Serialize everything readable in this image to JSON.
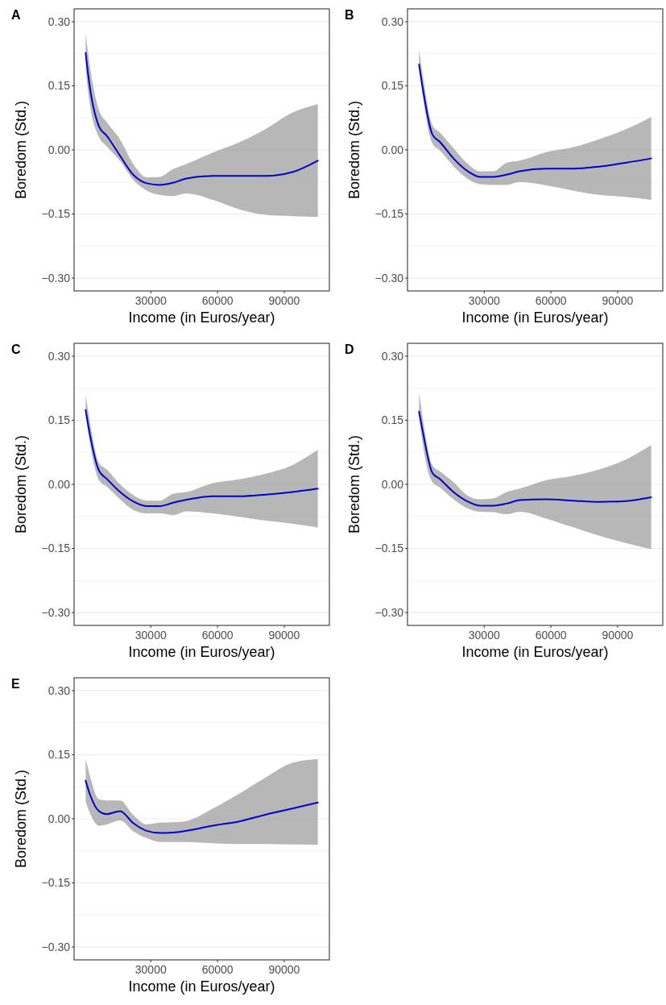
{
  "chart_data": [
    {
      "type": "line",
      "title": "A",
      "xlabel": "Income (in Euros/year)",
      "ylabel": "Boredom (Std.)",
      "xlim": [
        -4500,
        110300
      ],
      "ylim": [
        -0.33,
        0.33
      ],
      "xticks": [
        30000,
        60000,
        90000
      ],
      "yticks": [
        {
          "value": -0.3,
          "label": "−0.30"
        },
        {
          "value": -0.225,
          "label": null
        },
        {
          "value": -0.15,
          "label": "−0.15"
        },
        {
          "value": -0.075,
          "label": null
        },
        {
          "value": 0,
          "label": "0.00"
        },
        {
          "value": 0.075,
          "label": null
        },
        {
          "value": 0.15,
          "label": "0.15"
        },
        {
          "value": 0.225,
          "label": null
        },
        {
          "value": 0.3,
          "label": "0.30"
        }
      ],
      "grid": "y",
      "x": [
        700,
        2500,
        6700,
        10200,
        16200,
        22100,
        28100,
        34000,
        40000,
        46000,
        57900,
        69800,
        81700,
        93600,
        105100
      ],
      "series": [
        {
          "color": "#0000cd",
          "values": [
            0.227,
            0.15,
            0.055,
            0.033,
            -0.014,
            -0.058,
            -0.078,
            -0.082,
            -0.077,
            -0.067,
            -0.061,
            -0.061,
            -0.061,
            -0.052,
            -0.025
          ],
          "upper": [
            0.272,
            0.2,
            0.093,
            0.065,
            0.024,
            -0.033,
            -0.064,
            -0.063,
            -0.045,
            -0.033,
            -0.006,
            0.018,
            0.049,
            0.087,
            0.107
          ],
          "lower": [
            0.19,
            0.11,
            0.03,
            0.008,
            -0.026,
            -0.07,
            -0.095,
            -0.105,
            -0.108,
            -0.102,
            -0.117,
            -0.139,
            -0.152,
            -0.155,
            -0.157
          ]
        }
      ]
    },
    {
      "type": "line",
      "title": "B",
      "xlabel": "Income (in Euros/year)",
      "ylabel": "Boredom (Std.)",
      "xlim": [
        -4500,
        110300
      ],
      "ylim": [
        -0.33,
        0.33
      ],
      "xticks": [
        30000,
        60000,
        90000
      ],
      "yticks": [
        {
          "value": -0.3,
          "label": "−0.30"
        },
        {
          "value": -0.225,
          "label": null
        },
        {
          "value": -0.15,
          "label": "−0.15"
        },
        {
          "value": -0.075,
          "label": null
        },
        {
          "value": 0,
          "label": "0.00"
        },
        {
          "value": 0.075,
          "label": null
        },
        {
          "value": 0.15,
          "label": "0.15"
        },
        {
          "value": 0.225,
          "label": null
        },
        {
          "value": 0.3,
          "label": "0.30"
        }
      ],
      "grid": "y",
      "x": [
        700,
        2500,
        6700,
        10200,
        16200,
        22100,
        28100,
        34000,
        40000,
        46000,
        57900,
        69800,
        81700,
        93600,
        105100
      ],
      "series": [
        {
          "color": "#0000cd",
          "values": [
            0.2,
            0.14,
            0.036,
            0.018,
            -0.02,
            -0.048,
            -0.063,
            -0.063,
            -0.058,
            -0.05,
            -0.044,
            -0.044,
            -0.039,
            -0.03,
            -0.02
          ],
          "upper": [
            0.235,
            0.17,
            0.058,
            0.04,
            0.004,
            -0.03,
            -0.05,
            -0.05,
            -0.03,
            -0.025,
            -0.005,
            0.006,
            0.025,
            0.048,
            0.077
          ],
          "lower": [
            0.19,
            0.12,
            0.015,
            -0.002,
            -0.038,
            -0.066,
            -0.08,
            -0.082,
            -0.082,
            -0.075,
            -0.083,
            -0.095,
            -0.105,
            -0.11,
            -0.117
          ]
        }
      ]
    },
    {
      "type": "line",
      "title": "C",
      "xlabel": "Income (in Euros/year)",
      "ylabel": "Boredom (Std.)",
      "xlim": [
        -4500,
        110300
      ],
      "ylim": [
        -0.33,
        0.33
      ],
      "xticks": [
        30000,
        60000,
        90000
      ],
      "yticks": [
        {
          "value": -0.3,
          "label": "−0.30"
        },
        {
          "value": -0.225,
          "label": null
        },
        {
          "value": -0.15,
          "label": "−0.15"
        },
        {
          "value": -0.075,
          "label": null
        },
        {
          "value": 0,
          "label": "0.00"
        },
        {
          "value": 0.075,
          "label": null
        },
        {
          "value": 0.15,
          "label": "0.15"
        },
        {
          "value": 0.225,
          "label": null
        },
        {
          "value": 0.3,
          "label": "0.30"
        }
      ],
      "grid": "y",
      "x": [
        700,
        2500,
        6700,
        10200,
        16200,
        22100,
        28100,
        34000,
        40000,
        46000,
        57900,
        69800,
        81700,
        93600,
        105100
      ],
      "series": [
        {
          "color": "#0000cd",
          "values": [
            0.174,
            0.12,
            0.032,
            0.013,
            -0.018,
            -0.04,
            -0.051,
            -0.051,
            -0.043,
            -0.036,
            -0.028,
            -0.028,
            -0.024,
            -0.018,
            -0.01
          ],
          "upper": [
            0.21,
            0.15,
            0.05,
            0.035,
            0.0,
            -0.025,
            -0.038,
            -0.038,
            -0.022,
            -0.018,
            0.003,
            0.012,
            0.025,
            0.045,
            0.081
          ],
          "lower": [
            0.16,
            0.1,
            0.01,
            -0.005,
            -0.035,
            -0.06,
            -0.068,
            -0.068,
            -0.072,
            -0.063,
            -0.068,
            -0.076,
            -0.085,
            -0.092,
            -0.101
          ]
        }
      ]
    },
    {
      "type": "line",
      "title": "D",
      "xlabel": "Income (in Euros/year)",
      "ylabel": "Boredom (Std.)",
      "xlim": [
        -4500,
        110300
      ],
      "ylim": [
        -0.33,
        0.33
      ],
      "xticks": [
        30000,
        60000,
        90000
      ],
      "yticks": [
        {
          "value": -0.3,
          "label": "−0.30"
        },
        {
          "value": -0.225,
          "label": null
        },
        {
          "value": -0.15,
          "label": "−0.15"
        },
        {
          "value": -0.075,
          "label": null
        },
        {
          "value": 0,
          "label": "0.00"
        },
        {
          "value": 0.075,
          "label": null
        },
        {
          "value": 0.15,
          "label": "0.15"
        },
        {
          "value": 0.225,
          "label": null
        },
        {
          "value": 0.3,
          "label": "0.30"
        }
      ],
      "grid": "y",
      "x": [
        700,
        2500,
        6700,
        10200,
        16200,
        22100,
        28100,
        34000,
        40000,
        46000,
        57900,
        69800,
        81700,
        93600,
        105100
      ],
      "series": [
        {
          "color": "#0000cd",
          "values": [
            0.17,
            0.12,
            0.027,
            0.012,
            -0.018,
            -0.039,
            -0.05,
            -0.05,
            -0.045,
            -0.037,
            -0.035,
            -0.038,
            -0.041,
            -0.039,
            -0.03
          ],
          "upper": [
            0.215,
            0.15,
            0.045,
            0.03,
            0.005,
            -0.025,
            -0.035,
            -0.033,
            -0.018,
            -0.01,
            0.01,
            0.02,
            0.035,
            0.058,
            0.092
          ],
          "lower": [
            0.16,
            0.09,
            0.005,
            -0.008,
            -0.035,
            -0.055,
            -0.064,
            -0.065,
            -0.07,
            -0.064,
            -0.08,
            -0.1,
            -0.12,
            -0.137,
            -0.152
          ]
        }
      ]
    },
    {
      "type": "line",
      "title": "E",
      "xlabel": "Income (in Euros/year)",
      "ylabel": "Boredom (Std.)",
      "xlim": [
        -4500,
        110300
      ],
      "ylim": [
        -0.33,
        0.33
      ],
      "xticks": [
        30000,
        60000,
        90000
      ],
      "yticks": [
        {
          "value": -0.3,
          "label": "−0.30"
        },
        {
          "value": -0.225,
          "label": null
        },
        {
          "value": -0.15,
          "label": "−0.15"
        },
        {
          "value": -0.075,
          "label": null
        },
        {
          "value": 0,
          "label": "0.00"
        },
        {
          "value": 0.075,
          "label": null
        },
        {
          "value": 0.15,
          "label": "0.15"
        },
        {
          "value": 0.225,
          "label": null
        },
        {
          "value": 0.3,
          "label": "0.30"
        }
      ],
      "grid": "y",
      "x": [
        700,
        2500,
        6700,
        10200,
        16200,
        22100,
        28100,
        34000,
        40000,
        46000,
        57900,
        69800,
        81700,
        93600,
        105100
      ],
      "series": [
        {
          "color": "#0000cd",
          "values": [
            0.089,
            0.059,
            0.018,
            0.011,
            0.018,
            -0.01,
            -0.028,
            -0.033,
            -0.032,
            -0.028,
            -0.016,
            -0.006,
            0.01,
            0.024,
            0.038
          ],
          "upper": [
            0.14,
            0.103,
            0.046,
            0.043,
            0.043,
            0.009,
            -0.013,
            -0.009,
            -0.008,
            -0.005,
            0.024,
            0.059,
            0.097,
            0.131,
            0.14
          ],
          "lower": [
            0.04,
            0.015,
            -0.016,
            -0.013,
            -0.004,
            -0.029,
            -0.045,
            -0.054,
            -0.054,
            -0.054,
            -0.057,
            -0.059,
            -0.059,
            -0.06,
            -0.061
          ]
        }
      ]
    }
  ]
}
